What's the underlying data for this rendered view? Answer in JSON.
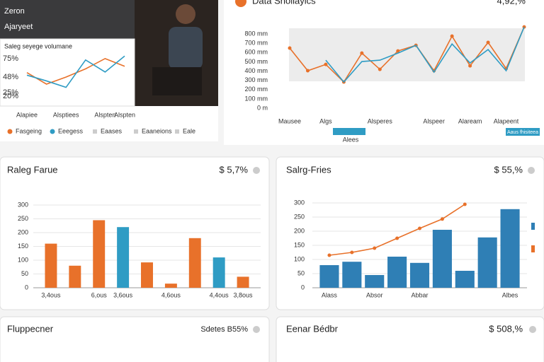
{
  "hero": {
    "title": "Zeron",
    "subtitle": "Ajaryeet"
  },
  "chart_data": [
    {
      "type": "line",
      "title": "Saleg seyege volumane",
      "categories": [
        "Alapiee",
        null,
        "Alsptiees",
        null,
        "Alspten",
        "Alspten"
      ],
      "series": [
        {
          "name": "Fasgeing",
          "color": "#e8712a",
          "values": [
            54.5,
            37.7,
            48,
            60,
            75,
            63.8
          ]
        },
        {
          "name": "Eeegess",
          "color": "#2f9cc4",
          "values": [
            50.8,
            42.4,
            33,
            73,
            55.4,
            78.7
          ]
        }
      ],
      "ylim": [
        15,
        80
      ],
      "yticks": [
        {
          "value": 20,
          "label": "20%"
        },
        {
          "value": 25,
          "label": "25%"
        },
        {
          "value": 48,
          "label": "48%"
        },
        {
          "value": 75,
          "label": "75%"
        }
      ],
      "legend_extra": [
        "Eaases",
        "Eaaneions",
        "Eale"
      ]
    },
    {
      "type": "line",
      "title": "Data Sholiayics",
      "headline": "4,92,%",
      "categories": [
        "Mausee",
        null,
        "Algs",
        null,
        null,
        "Alsperes",
        null,
        null,
        "Alspeer",
        null,
        "Alaream",
        null,
        "Alapeent",
        null
      ],
      "series": [
        {
          "color": "#e8712a",
          "values": [
            648,
            404,
            472,
            282,
            594,
            419,
            617,
            678,
            404,
            777,
            457,
            709,
            427,
            876
          ]
        },
        {
          "name": "Alees",
          "color": "#2f9cc4",
          "values": [
            null,
            null,
            518,
            282,
            503,
            518,
            594,
            678,
            389,
            693,
            488,
            632,
            404,
            876
          ]
        }
      ],
      "ylim": [
        0,
        900
      ],
      "yticks": [
        {
          "value": 0,
          "label": "0 m"
        },
        {
          "value": 100,
          "label": "100 mm"
        },
        {
          "value": 200,
          "label": "200 mm"
        },
        {
          "value": 300,
          "label": "300 mm"
        },
        {
          "value": 400,
          "label": "400 mm"
        },
        {
          "value": 500,
          "label": "500 mm"
        },
        {
          "value": 600,
          "label": "600 mm"
        },
        {
          "value": 700,
          "label": "700 mm"
        },
        {
          "value": 800,
          "label": "800 mm"
        }
      ],
      "badge": "Aaus fhisiteea"
    },
    {
      "type": "bar",
      "title": "Raleg Farue",
      "headline": "$ 5,7%",
      "categories": [
        "3,4ous",
        null,
        "6,ous",
        "3,6ous",
        null,
        "4,6ous",
        null,
        "4,4ous",
        "3,8ous"
      ],
      "values": [
        160,
        80,
        245,
        220,
        92,
        15,
        180,
        110,
        40
      ],
      "colors": [
        "#e8712a",
        "#e8712a",
        "#e8712a",
        "#2f9cc4",
        "#e8712a",
        "#e8712a",
        "#e8712a",
        "#2f9cc4",
        "#e8712a"
      ],
      "ylim": [
        0,
        300
      ],
      "yticks": [
        0,
        50,
        100,
        150,
        200,
        250,
        300
      ],
      "grid": true
    },
    {
      "type": "bar_line",
      "title": "Salrg-Fries",
      "headline": "$ 55,%",
      "categories": [
        "Alass",
        null,
        "Absor",
        null,
        "Abbar",
        null,
        null,
        null,
        "Albes"
      ],
      "series": [
        {
          "kind": "bar",
          "color": "#2f7fb5",
          "values": [
            80,
            92,
            45,
            110,
            88,
            205,
            60,
            178,
            278
          ]
        },
        {
          "kind": "line",
          "color": "#e8712a",
          "values": [
            115,
            125,
            140,
            175,
            210,
            243,
            295,
            null,
            null
          ]
        }
      ],
      "ylim": [
        0,
        300
      ],
      "yticks": [
        0,
        50,
        100,
        150,
        200,
        250,
        300
      ],
      "grid": true
    }
  ],
  "cards": [
    {
      "title": "Fluppecner",
      "headline": "Sdetes B55%"
    },
    {
      "title": "Eenar Bédbr",
      "headline": "$ 508,%"
    }
  ]
}
